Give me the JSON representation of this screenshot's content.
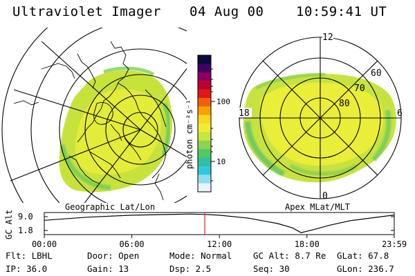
{
  "header": {
    "title": "Ultraviolet Imager",
    "date": "04 Aug 00",
    "time": "10:59:41  UT"
  },
  "left_panel": {
    "caption": "Geographic Lat/Lon"
  },
  "right_panel": {
    "caption": "Apex MLat/MLT",
    "mlt_labels": {
      "top": "12",
      "left": "18",
      "right": "6",
      "bottom": "0"
    },
    "lat_labels": [
      "60",
      "70",
      "80"
    ]
  },
  "colorbar": {
    "unit_label": "photon cm⁻²s⁻¹",
    "ticks": [
      {
        "label": "100",
        "value": 100
      },
      {
        "label": "10",
        "value": 10
      }
    ],
    "range": [
      2.5,
      600
    ],
    "scale": "log",
    "colors_top_to_bottom": [
      "#0a0a3c",
      "#400060",
      "#8a0060",
      "#c00030",
      "#e01818",
      "#f06010",
      "#f8a008",
      "#f8d820",
      "#f0ec30",
      "#c8e640",
      "#8ed250",
      "#50c864",
      "#30c0a0",
      "#30c8dc",
      "#90dcf0",
      "#e8f4fc"
    ]
  },
  "timeline": {
    "y_axis_label": "GC Alt",
    "y_ticks": [
      "9.0",
      "1.8"
    ],
    "x_ticks": [
      "00:00",
      "06:00",
      "12:00",
      "18:00",
      "23:59"
    ],
    "x_tick_hours": [
      0,
      6,
      12,
      18,
      23.983
    ],
    "current_time_hours": 11.0,
    "marker_color": "#e02020",
    "curve_hours": [
      0,
      3,
      6,
      9,
      10,
      11,
      12,
      14,
      16,
      17,
      17.6,
      18.5,
      19.5,
      21,
      23.983
    ],
    "curve_alt_re": [
      6.6,
      7.8,
      8.5,
      8.85,
      8.95,
      8.8,
      8.5,
      7.4,
      5.4,
      3.8,
      2.0,
      3.2,
      4.7,
      6.5,
      8.6
    ]
  },
  "status": {
    "flt": "Flt: LBHL",
    "door": "Door: Open",
    "mode": "Mode: Normal",
    "gc_alt": "GC Alt: 8.7 Re",
    "glat": "GLat:  67.8",
    "ip": "IP: 36.0",
    "gain": "Gain: 13",
    "dsp": "Dsp:     2.5",
    "seq": "Seq: 30",
    "glon": "GLon: 236.7"
  }
}
